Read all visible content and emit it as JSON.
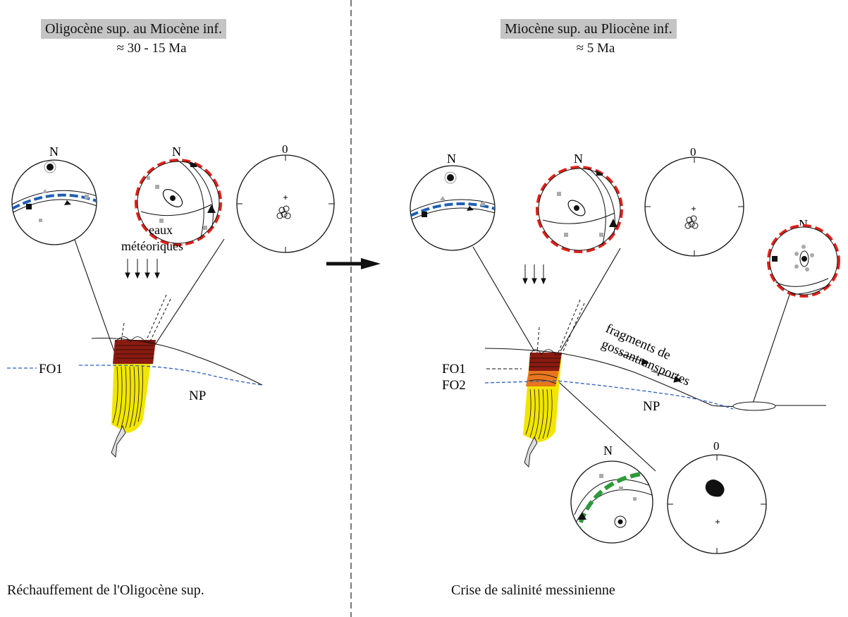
{
  "left_panel": {
    "period": "Oligocène sup. au Miocène inf.",
    "age": "≈ 30 - 15 Ma",
    "caption": "Réchauffement de l'Oligocène sup.",
    "flow_label_line1": "eaux",
    "flow_label_line2": "météoriques",
    "fo1": "FO1",
    "np": "NP"
  },
  "right_panel": {
    "period": "Miocène sup. au Pliocène inf.",
    "age": "≈ 5 Ma",
    "caption": "Crise de salinité messinienne",
    "fo1": "FO1",
    "fo2": "FO2",
    "np": "NP",
    "fragments_line1": "fragments de",
    "fragments_line2": "gossantransportes"
  },
  "stereonet_labels": {
    "north": "N",
    "zero": "0"
  },
  "colors": {
    "header_bg": "#c4c4c4",
    "great_circle_blue": "#1f5fb3",
    "great_circle_red": "#e0201a",
    "great_circle_green": "#2f9a3a",
    "oxidized_dark": "#8b1a10",
    "oxidized_orange": "#e8761e",
    "sulfide_yellow": "#f2e600",
    "water_table": "#2a5fbf"
  }
}
